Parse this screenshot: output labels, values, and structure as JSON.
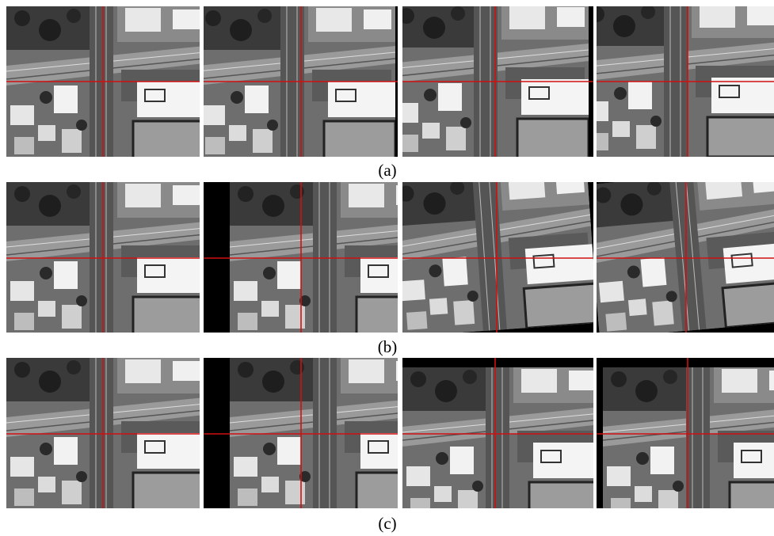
{
  "figure": {
    "rows": [
      {
        "label": "(a)"
      },
      {
        "label": "(b)"
      },
      {
        "label": "(c)"
      }
    ]
  }
}
